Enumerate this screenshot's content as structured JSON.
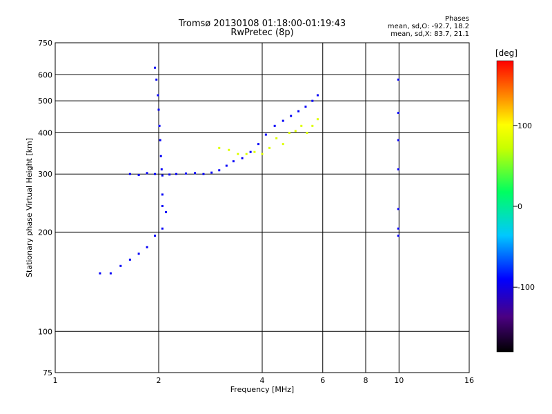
{
  "header": {
    "title": "Tromsø 20130108 01:18:00-01:19:43",
    "subtitle": "RwPretec (8p)"
  },
  "phase_box": {
    "heading": "Phases",
    "line_o": "mean, sd,O: -92.7, 18.2",
    "line_x": "mean, sd,X: 83.7, 21.1"
  },
  "colorbar": {
    "label": "[deg]",
    "ticks": [
      "100",
      "0",
      "-100"
    ],
    "tick_values": [
      100,
      0,
      -100
    ],
    "range": [
      -180,
      180
    ],
    "colors": [
      "#000000",
      "#4b0082",
      "#0000ff",
      "#00c8ff",
      "#00ff60",
      "#c8ff00",
      "#ffff00",
      "#ff8800",
      "#ff0000"
    ]
  },
  "chart_data": {
    "type": "scatter",
    "title": "Tromsø 20130108 01:18:00-01:19:43",
    "subtitle": "RwPretec (8p)",
    "xlabel": "Frequency [MHz]",
    "ylabel": "Stationary phase Virtual Height [km]",
    "xscale": "log",
    "yscale": "log",
    "xlim": [
      1,
      16
    ],
    "ylim": [
      75,
      750
    ],
    "xticks": [
      1,
      2,
      4,
      6,
      8,
      10,
      16
    ],
    "xtick_labels": [
      "1",
      "2",
      "4",
      "6",
      "8",
      "10",
      "16"
    ],
    "yticks": [
      75,
      100,
      200,
      300,
      400,
      500,
      600,
      750
    ],
    "ytick_labels": [
      "75",
      "100",
      "200",
      "300",
      "400",
      "500",
      "600",
      "750"
    ],
    "grid": true,
    "color_variable": "phase [deg]",
    "series": [
      {
        "trace": "O-mode F-region trace",
        "phase_mean": -92.7,
        "phase_sd": 18.2,
        "points": [
          [
            1.65,
            300
          ],
          [
            1.75,
            298
          ],
          [
            1.85,
            302
          ],
          [
            1.95,
            300
          ],
          [
            2.05,
            297
          ],
          [
            2.15,
            299
          ],
          [
            2.25,
            300
          ],
          [
            2.4,
            301
          ],
          [
            2.55,
            302
          ],
          [
            2.7,
            300
          ],
          [
            2.85,
            303
          ],
          [
            3.0,
            308
          ],
          [
            3.15,
            318
          ],
          [
            3.3,
            328
          ],
          [
            3.5,
            335
          ],
          [
            3.7,
            350
          ],
          [
            3.9,
            370
          ],
          [
            4.1,
            395
          ],
          [
            4.35,
            420
          ],
          [
            4.6,
            435
          ],
          [
            4.85,
            450
          ],
          [
            5.1,
            465
          ],
          [
            5.35,
            480
          ],
          [
            5.6,
            500
          ],
          [
            5.8,
            520
          ]
        ]
      },
      {
        "trace": "X-mode F-region trace",
        "phase_mean": 83.7,
        "phase_sd": 21.1,
        "points": [
          [
            3.0,
            360
          ],
          [
            3.2,
            355
          ],
          [
            3.4,
            345
          ],
          [
            3.6,
            345
          ],
          [
            3.8,
            350
          ],
          [
            4.0,
            345
          ],
          [
            4.2,
            360
          ],
          [
            4.4,
            385
          ],
          [
            4.6,
            370
          ],
          [
            4.8,
            400
          ],
          [
            5.0,
            405
          ],
          [
            5.2,
            420
          ],
          [
            5.4,
            400
          ],
          [
            5.6,
            420
          ],
          [
            5.8,
            440
          ]
        ]
      },
      {
        "trace": "Lower layer trace",
        "phase_mean": -92.7,
        "phase_sd": 18.2,
        "points": [
          [
            1.35,
            150
          ],
          [
            1.45,
            150
          ],
          [
            1.55,
            158
          ],
          [
            1.65,
            165
          ],
          [
            1.75,
            172
          ],
          [
            1.85,
            180
          ],
          [
            1.95,
            195
          ],
          [
            2.05,
            205
          ],
          [
            2.1,
            230
          ]
        ]
      },
      {
        "trace": "Near-vertical band at 2 MHz",
        "phase_mean": -92.7,
        "phase_sd": 18.2,
        "points": [
          [
            1.95,
            630
          ],
          [
            1.97,
            580
          ],
          [
            1.99,
            520
          ],
          [
            2.0,
            470
          ],
          [
            2.01,
            420
          ],
          [
            2.02,
            380
          ],
          [
            2.03,
            340
          ],
          [
            2.04,
            310
          ],
          [
            2.05,
            260
          ],
          [
            2.05,
            240
          ]
        ]
      },
      {
        "trace": "Trace near 10 MHz",
        "phase_mean": -92.7,
        "phase_sd": 18.2,
        "points": [
          [
            9.95,
            580
          ],
          [
            9.95,
            460
          ],
          [
            9.95,
            380
          ],
          [
            9.95,
            310
          ],
          [
            9.95,
            235
          ],
          [
            9.95,
            205
          ],
          [
            9.95,
            195
          ]
        ]
      }
    ]
  }
}
